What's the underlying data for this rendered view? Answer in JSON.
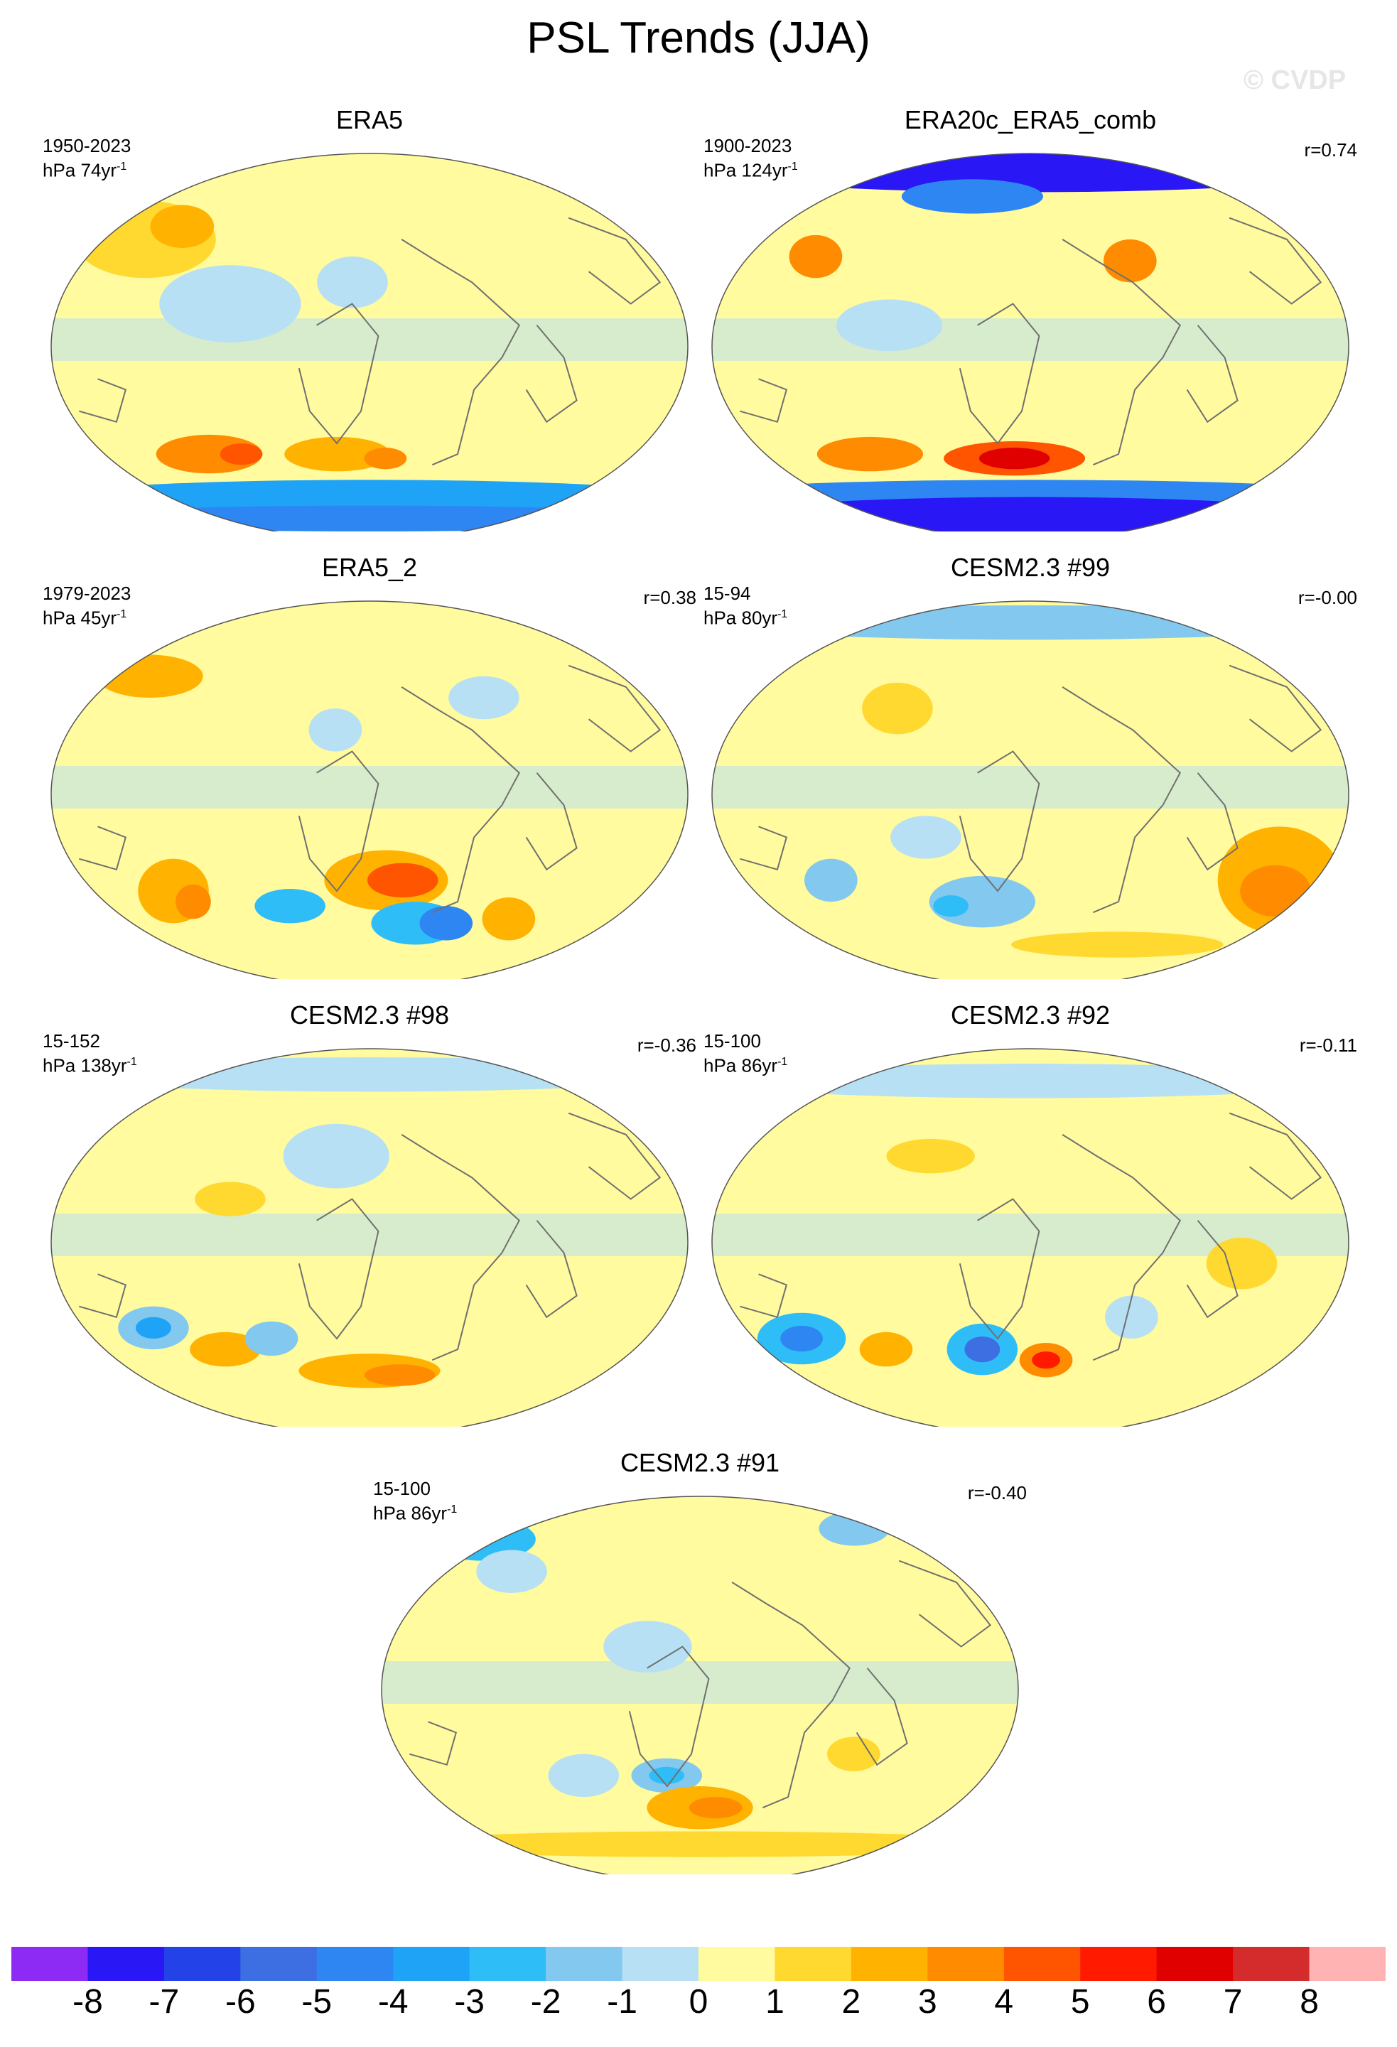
{
  "title": "PSL Trends (JJA)",
  "watermark": "© CVDP",
  "panels": [
    {
      "title": "ERA5",
      "period": "1950-2023",
      "units_prefix": "hPa 74yr",
      "units_exp": "-1",
      "corr": "",
      "blobs": [
        [
          -140,
          50,
          40,
          18,
          1
        ],
        [
          -120,
          56,
          18,
          10,
          2
        ],
        [
          -100,
          -50,
          30,
          9,
          3
        ],
        [
          -80,
          -50,
          12,
          5,
          4
        ],
        [
          -20,
          -50,
          30,
          8,
          2
        ],
        [
          10,
          -52,
          12,
          5,
          3
        ],
        [
          -80,
          20,
          40,
          18,
          -1
        ],
        [
          -10,
          30,
          20,
          12,
          -1
        ],
        [
          0,
          -70,
          180,
          8,
          -4
        ],
        [
          0,
          -80,
          180,
          6,
          -5
        ]
      ]
    },
    {
      "title": "ERA20c_ERA5_comb",
      "period": "1900-2023",
      "units_prefix": "hPa 124yr",
      "units_exp": "-1",
      "corr": "r=0.74",
      "blobs": [
        [
          0,
          82,
          180,
          10,
          -8
        ],
        [
          -40,
          70,
          40,
          8,
          -5
        ],
        [
          -130,
          42,
          15,
          10,
          3
        ],
        [
          -100,
          -50,
          30,
          8,
          3
        ],
        [
          -10,
          -52,
          40,
          8,
          4
        ],
        [
          -10,
          -52,
          20,
          5,
          6
        ],
        [
          0,
          -68,
          180,
          6,
          -5
        ],
        [
          0,
          -80,
          180,
          10,
          -8
        ],
        [
          60,
          40,
          15,
          10,
          3
        ],
        [
          -80,
          10,
          30,
          12,
          -1
        ]
      ]
    },
    {
      "title": "ERA5_2",
      "period": "1979-2023",
      "units_prefix": "hPa 45yr",
      "units_exp": "-1",
      "corr": "r=0.38",
      "blobs": [
        [
          -120,
          -45,
          20,
          15,
          2
        ],
        [
          -110,
          -50,
          10,
          8,
          3
        ],
        [
          -50,
          -52,
          20,
          8,
          -3
        ],
        [
          10,
          -40,
          35,
          14,
          2
        ],
        [
          20,
          -40,
          20,
          8,
          4
        ],
        [
          30,
          -60,
          25,
          10,
          -3
        ],
        [
          50,
          -60,
          15,
          8,
          -5
        ],
        [
          90,
          -58,
          15,
          10,
          2
        ],
        [
          70,
          45,
          20,
          10,
          -1
        ],
        [
          -140,
          55,
          30,
          10,
          2
        ],
        [
          -20,
          30,
          15,
          10,
          -1
        ]
      ]
    },
    {
      "title": "CESM2.3 #99",
      "period": "15-94",
      "units_prefix": "hPa 80yr",
      "units_exp": "-1",
      "corr": "r=-0.00",
      "blobs": [
        [
          150,
          -40,
          35,
          25,
          2
        ],
        [
          150,
          -45,
          20,
          12,
          3
        ],
        [
          -120,
          -40,
          15,
          10,
          -2
        ],
        [
          -30,
          -50,
          30,
          12,
          -2
        ],
        [
          -50,
          -52,
          10,
          5,
          -3
        ],
        [
          -80,
          40,
          20,
          12,
          1
        ],
        [
          0,
          80,
          180,
          8,
          -2
        ],
        [
          -60,
          -20,
          20,
          10,
          -1
        ],
        [
          60,
          -70,
          60,
          6,
          1
        ]
      ]
    },
    {
      "title": "CESM2.3 #98",
      "period": "15-152",
      "units_prefix": "hPa 138yr",
      "units_exp": "-1",
      "corr": "r=-0.36",
      "blobs": [
        [
          -130,
          -40,
          20,
          10,
          -2
        ],
        [
          -130,
          -40,
          10,
          5,
          -4
        ],
        [
          -90,
          -50,
          20,
          8,
          2
        ],
        [
          -60,
          -45,
          15,
          8,
          -2
        ],
        [
          0,
          -60,
          40,
          8,
          2
        ],
        [
          20,
          -62,
          20,
          5,
          3
        ],
        [
          -80,
          20,
          20,
          8,
          1
        ],
        [
          0,
          78,
          180,
          8,
          -1
        ],
        [
          -20,
          40,
          30,
          15,
          -1
        ]
      ]
    },
    {
      "title": "CESM2.3 #92",
      "period": "15-100",
      "units_prefix": "hPa 86yr",
      "units_exp": "-1",
      "corr": "r=-0.11",
      "blobs": [
        [
          -140,
          -45,
          25,
          12,
          -3
        ],
        [
          -140,
          -45,
          12,
          6,
          -5
        ],
        [
          -90,
          -50,
          15,
          8,
          2
        ],
        [
          -30,
          -50,
          20,
          12,
          -3
        ],
        [
          -30,
          -50,
          10,
          6,
          -6
        ],
        [
          10,
          -55,
          15,
          8,
          3
        ],
        [
          10,
          -55,
          8,
          4,
          5
        ],
        [
          60,
          -35,
          15,
          10,
          -1
        ],
        [
          -60,
          40,
          25,
          8,
          1
        ],
        [
          0,
          75,
          180,
          8,
          -1
        ],
        [
          120,
          -10,
          20,
          12,
          1
        ]
      ]
    },
    {
      "title": "CESM2.3 #91",
      "period": "15-100",
      "units_prefix": "hPa 86yr",
      "units_exp": "-1",
      "corr": "r=-0.40",
      "blobs": [
        [
          -150,
          70,
          30,
          10,
          -3
        ],
        [
          -120,
          55,
          20,
          10,
          -1
        ],
        [
          -70,
          -40,
          20,
          10,
          -1
        ],
        [
          -20,
          -40,
          20,
          8,
          -2
        ],
        [
          -20,
          -40,
          10,
          4,
          -3
        ],
        [
          0,
          -55,
          30,
          10,
          2
        ],
        [
          10,
          -55,
          15,
          5,
          3
        ],
        [
          90,
          -30,
          15,
          8,
          1
        ],
        [
          0,
          -72,
          180,
          6,
          1
        ],
        [
          -30,
          20,
          25,
          12,
          -1
        ],
        [
          110,
          75,
          20,
          8,
          -2
        ]
      ]
    }
  ],
  "colorbar": {
    "colors": [
      "#8d2bf4",
      "#2a17f5",
      "#2342e8",
      "#3d6ee2",
      "#2d86f2",
      "#1ea3f6",
      "#2fbdf8",
      "#83c8ee",
      "#b7e0f4",
      "#fffb9e",
      "#ffd930",
      "#ffb200",
      "#ff8c00",
      "#ff5500",
      "#ff1a00",
      "#e00000",
      "#d42c2c",
      "#ffb3b3"
    ],
    "labels": [
      "-8",
      "-7",
      "-6",
      "-5",
      "-4",
      "-3",
      "-2",
      "-1",
      "0",
      "1",
      "2",
      "3",
      "4",
      "5",
      "6",
      "7",
      "8"
    ]
  }
}
